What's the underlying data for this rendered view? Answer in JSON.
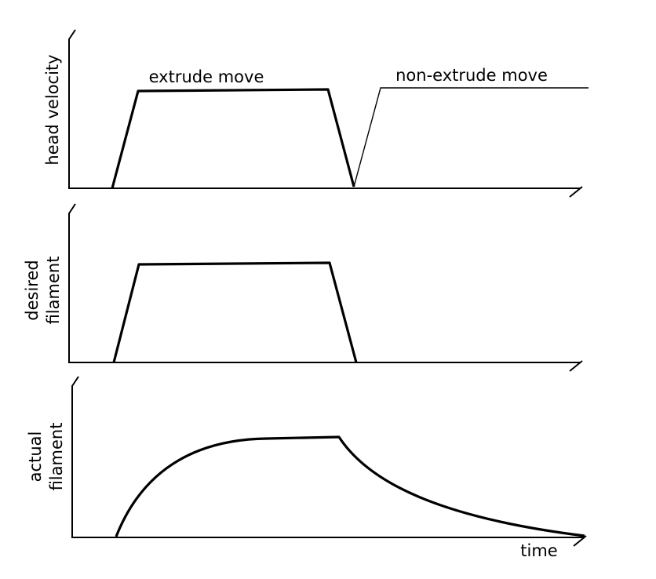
{
  "panels": [
    {
      "axis_label": [
        "head velocity"
      ],
      "annotations": [
        "extrude move",
        "non-extrude move"
      ]
    },
    {
      "axis_label": [
        "desired",
        "filament"
      ]
    },
    {
      "axis_label": [
        "actual",
        "filament"
      ],
      "x_axis_label": "time"
    }
  ]
}
